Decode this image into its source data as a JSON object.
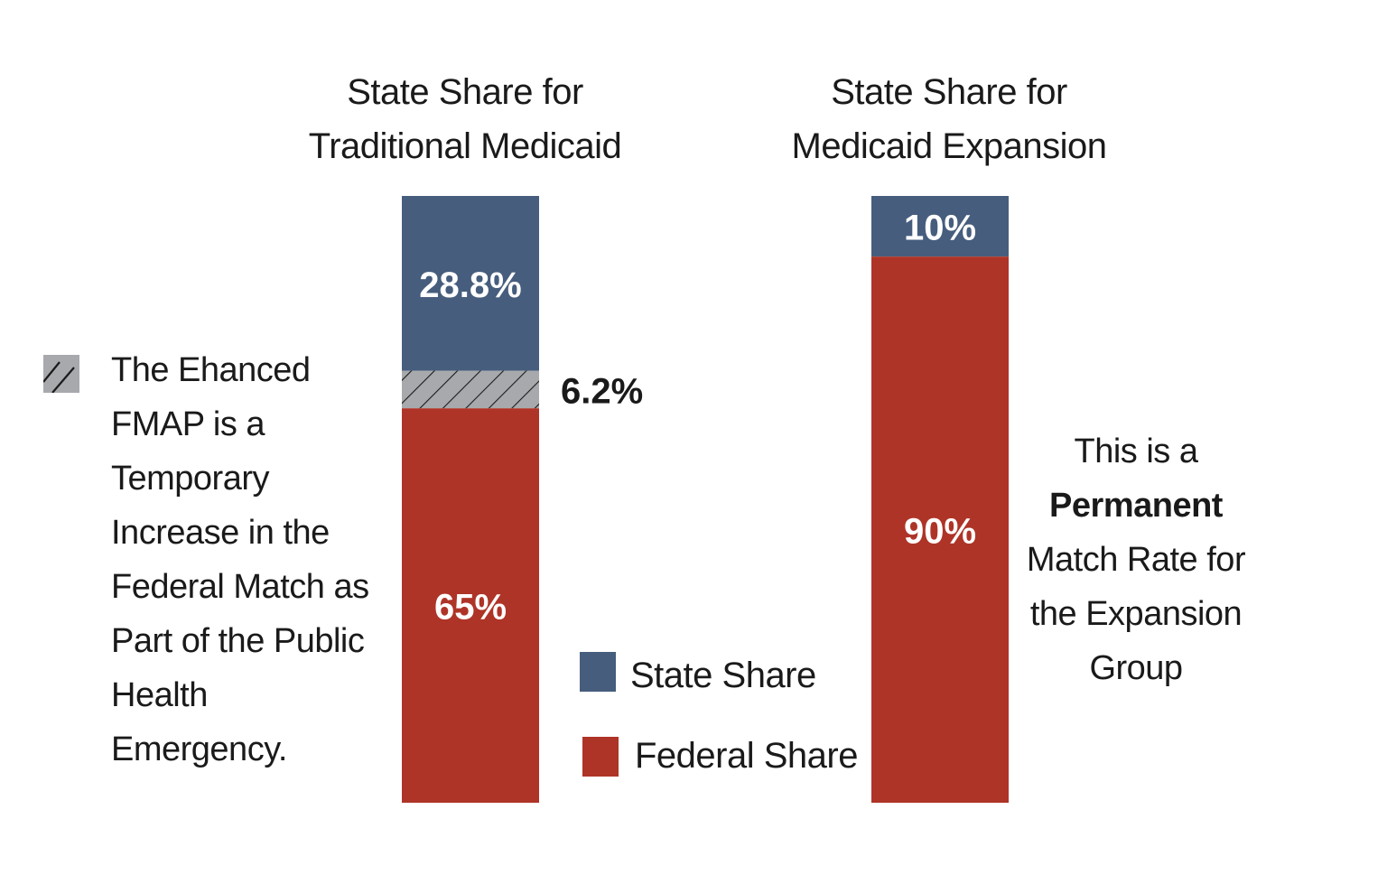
{
  "colors": {
    "state": "#465d7d",
    "federal": "#ae3427",
    "hatch_fill": "#a7a9ac",
    "hatch_line": "#1a1a1a",
    "text": "#1a1a1a",
    "bar_label": "#ffffff"
  },
  "chart_data": [
    {
      "type": "bar",
      "stacked": true,
      "title": [
        "State Share for",
        "Traditional Medicaid"
      ],
      "ylim": [
        0,
        100
      ],
      "segments": [
        {
          "name": "State Share",
          "value": 28.8,
          "label": "28.8%",
          "color_key": "state",
          "label_inside": true
        },
        {
          "name": "The Ehanced FMAP",
          "value": 6.2,
          "label": "6.2%",
          "hatched": true,
          "label_inside": false
        },
        {
          "name": "Federal Share",
          "value": 65,
          "label": "65%",
          "color_key": "federal",
          "label_inside": true
        }
      ]
    },
    {
      "type": "bar",
      "stacked": true,
      "title": [
        "State Share for",
        "Medicaid Expansion"
      ],
      "ylim": [
        0,
        100
      ],
      "segments": [
        {
          "name": "State Share",
          "value": 10,
          "label": "10%",
          "color_key": "state",
          "label_inside": true
        },
        {
          "name": "Federal Share",
          "value": 90,
          "label": "90%",
          "color_key": "federal",
          "label_inside": true
        }
      ]
    }
  ],
  "legend": [
    {
      "label": "State Share",
      "color_key": "state"
    },
    {
      "label": "Federal Share",
      "color_key": "federal"
    }
  ],
  "notes": {
    "hatch_note": [
      "The Ehanced",
      "FMAP is a",
      "Temporary",
      "Increase in the",
      "Federal Match as",
      "Part of the Public",
      "Health",
      "Emergency."
    ],
    "permanent_note": {
      "line1": "This is a",
      "bold": "Permanent",
      "line3": "Match Rate for",
      "line4": "the Expansion",
      "line5": "Group"
    }
  }
}
